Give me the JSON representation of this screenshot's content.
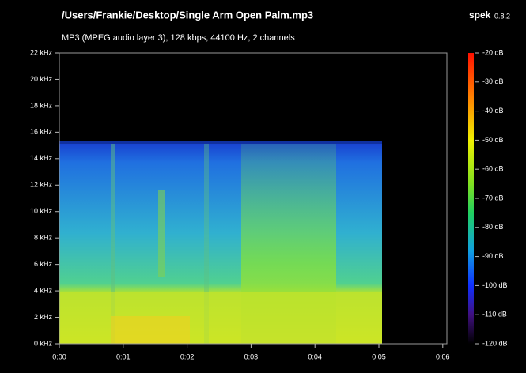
{
  "header": {
    "title": "/Users/Frankie/Desktop/Single Arm Open Palm.mp3",
    "subtitle": "MP3 (MPEG audio layer 3), 128 kbps, 44100 Hz, 2 channels",
    "app": "spek",
    "version": "0.8.2"
  },
  "y_axis": {
    "labels": [
      "22 kHz",
      "20 kHz",
      "18 kHz",
      "16 kHz",
      "14 kHz",
      "12 kHz",
      "10 kHz",
      "8 kHz",
      "6 kHz",
      "4 kHz",
      "2 kHz",
      "0 kHz"
    ]
  },
  "x_axis": {
    "labels": [
      "0:00",
      "0:01",
      "0:02",
      "0:03",
      "0:04",
      "0:05",
      "0:06"
    ]
  },
  "color_scale": {
    "labels": [
      "-20 dB",
      "-30 dB",
      "-40 dB",
      "-50 dB",
      "-60 dB",
      "-70 dB",
      "-80 dB",
      "-90 dB",
      "-100 dB",
      "-110 dB",
      "-120 dB"
    ]
  }
}
